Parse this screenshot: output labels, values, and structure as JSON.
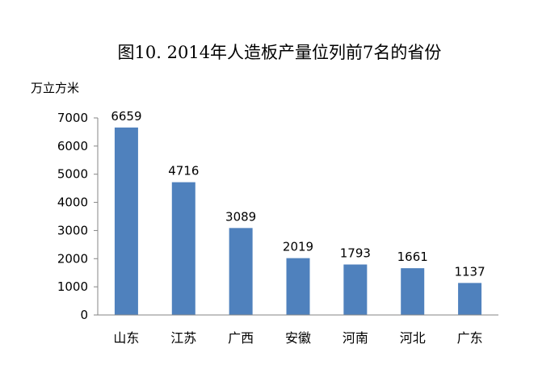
{
  "chart_data": {
    "type": "bar",
    "title": "图10. 2014年人造板产量位列前7名的省份",
    "ylabel": "万立方米",
    "xlabel": "",
    "categories": [
      "山东",
      "江苏",
      "广西",
      "安徽",
      "河南",
      "河北",
      "广东"
    ],
    "values": [
      6659,
      4716,
      3089,
      2019,
      1793,
      1661,
      1137
    ],
    "data_labels": [
      "6659",
      "4716",
      "3089",
      "2019",
      "1793",
      "1661",
      "1137"
    ],
    "yticks": [
      "0",
      "1000",
      "2000",
      "3000",
      "4000",
      "5000",
      "6000",
      "7000"
    ],
    "ylim": [
      0,
      7000
    ],
    "grid": false,
    "legend": "none",
    "bar_color": "#4f81bd",
    "axis_color": "#868686"
  }
}
